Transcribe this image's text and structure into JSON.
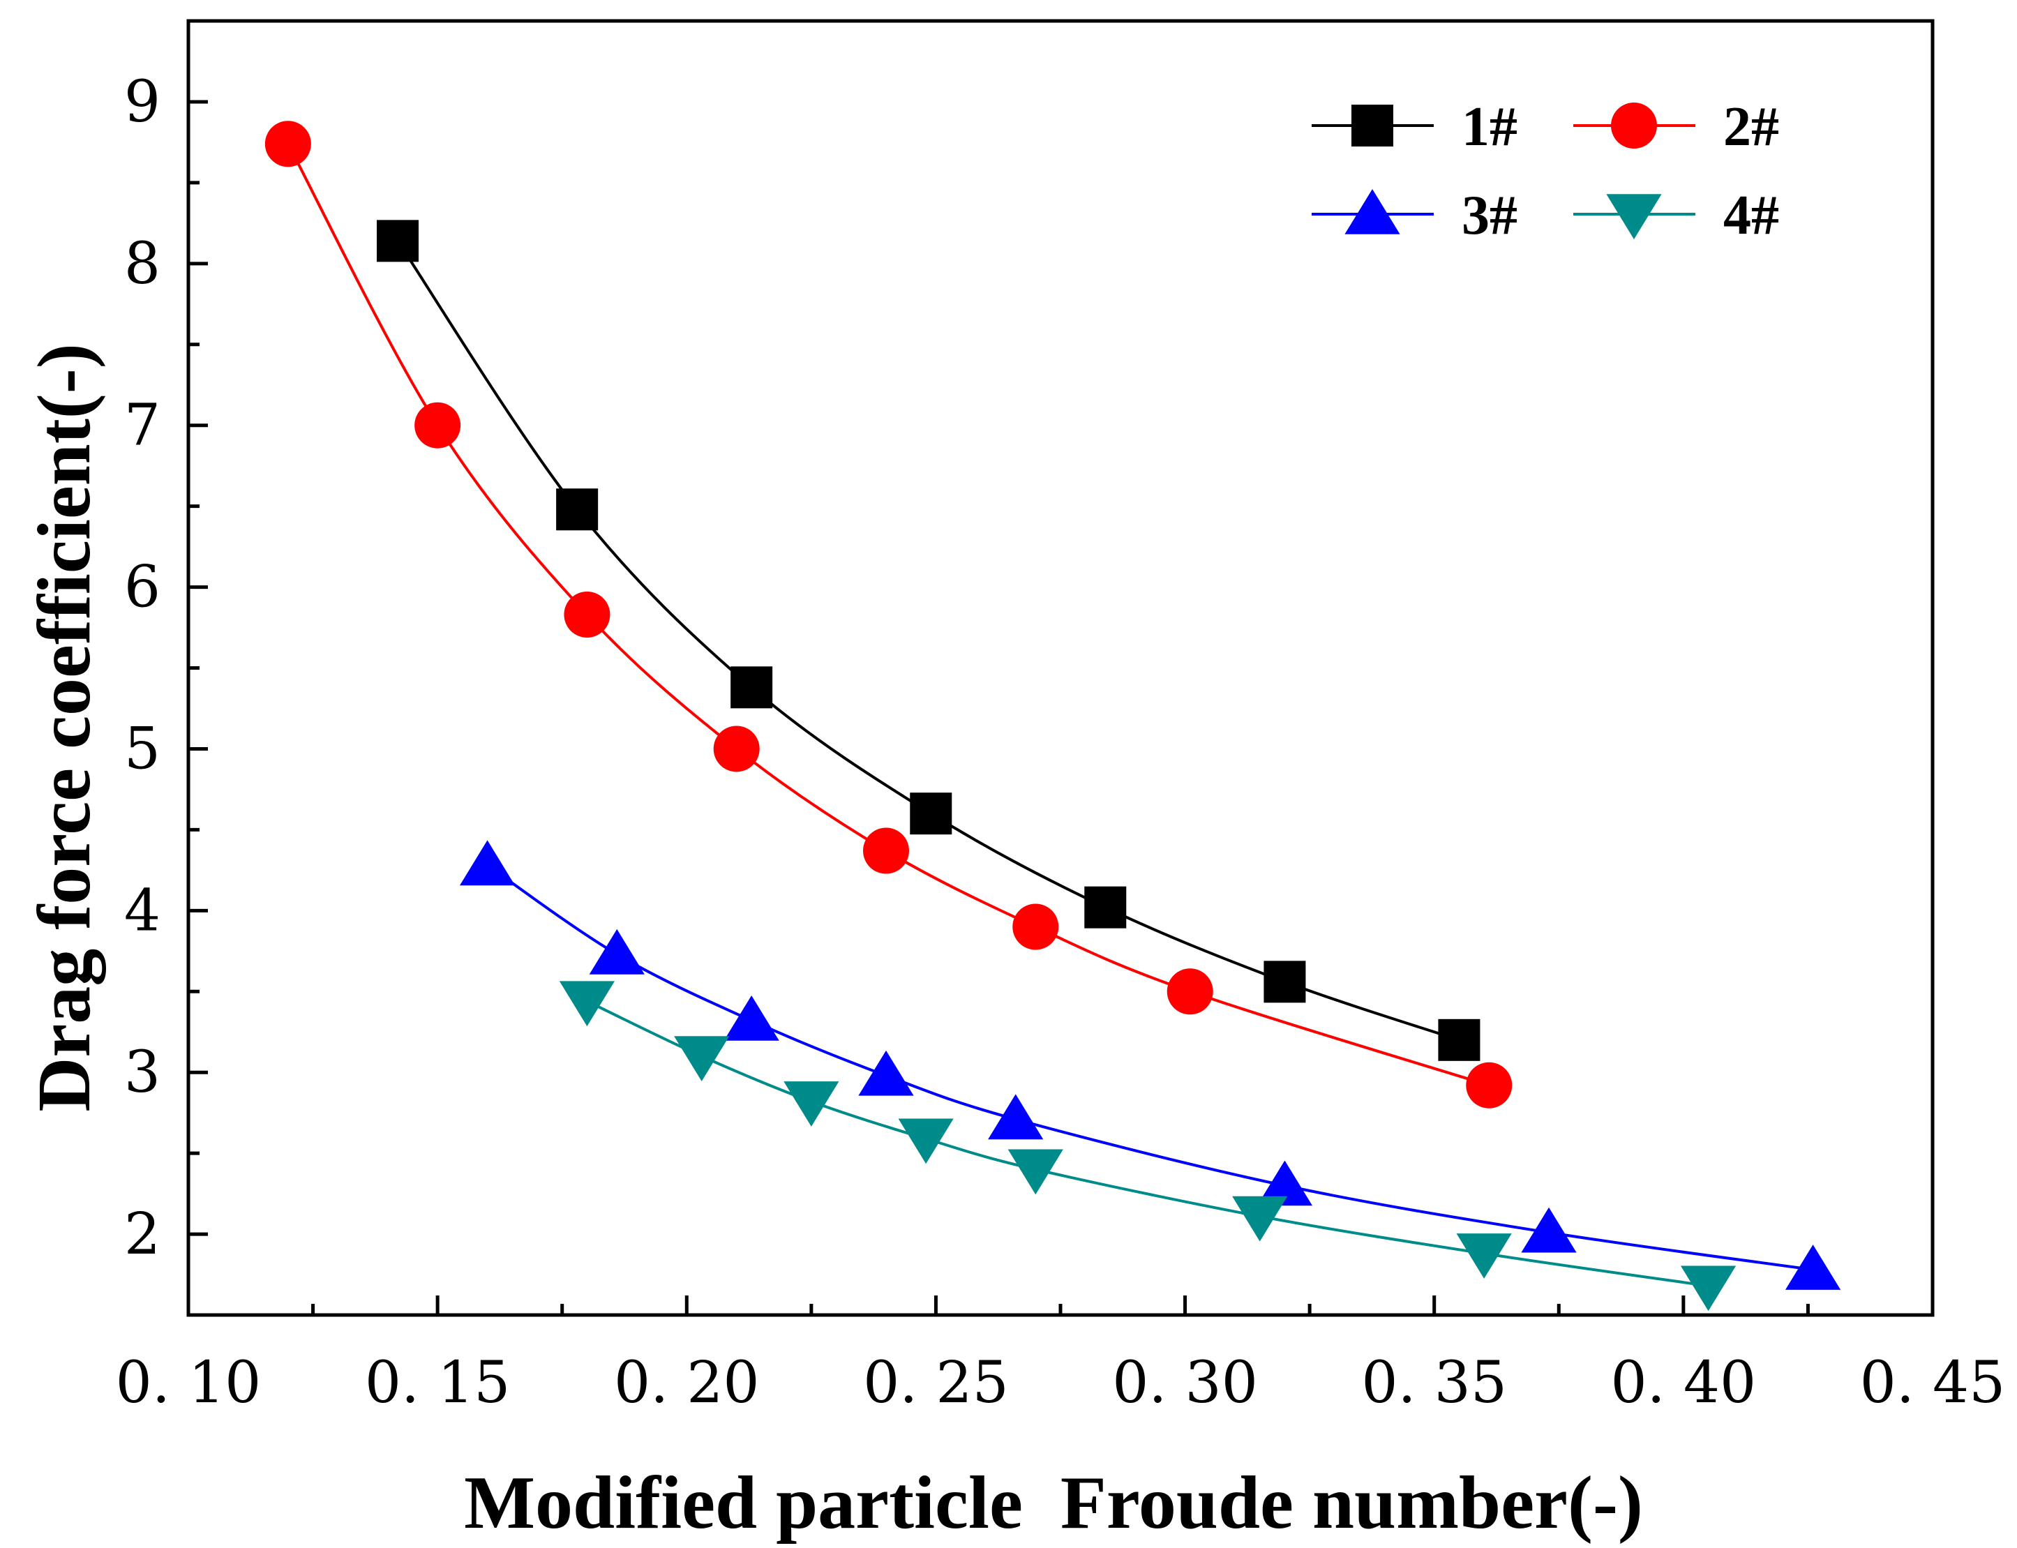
{
  "chart_data": {
    "type": "line",
    "title": "",
    "xlabel": "Modified particle  Froude number(-)",
    "ylabel": "Drag force coefficient(-)",
    "xlim": [
      0.1,
      0.45
    ],
    "ylim": [
      1.5,
      9.5
    ],
    "xticks": [
      0.1,
      0.15,
      0.2,
      0.25,
      0.3,
      0.35,
      0.4,
      0.45
    ],
    "xtick_labels": [
      "0. 10",
      "0. 15",
      "0. 20",
      "0. 25",
      "0. 30",
      "0. 35",
      "0. 40",
      "0. 45"
    ],
    "yticks": [
      2,
      3,
      4,
      5,
      6,
      7,
      8,
      9
    ],
    "ytick_labels": [
      "2",
      "3",
      "4",
      "5",
      "6",
      "7",
      "8",
      "9"
    ],
    "grid": false,
    "legend_position": "top-right",
    "series": [
      {
        "name": "1#",
        "color": "#000000",
        "marker": "square",
        "x": [
          0.142,
          0.178,
          0.213,
          0.249,
          0.284,
          0.32,
          0.355
        ],
        "y": [
          8.14,
          6.48,
          5.38,
          4.6,
          4.02,
          3.56,
          3.2
        ]
      },
      {
        "name": "2#",
        "color": "#ff0000",
        "marker": "circle",
        "x": [
          0.12,
          0.15,
          0.18,
          0.21,
          0.24,
          0.27,
          0.301,
          0.361
        ],
        "y": [
          8.74,
          7.0,
          5.83,
          5.0,
          4.37,
          3.9,
          3.5,
          2.92
        ]
      },
      {
        "name": "3#",
        "color": "#0000ff",
        "marker": "triangle-up",
        "x": [
          0.16,
          0.186,
          0.213,
          0.24,
          0.266,
          0.32,
          0.373,
          0.426
        ],
        "y": [
          4.28,
          3.73,
          3.32,
          2.98,
          2.71,
          2.3,
          2.01,
          1.78
        ]
      },
      {
        "name": "4#",
        "color": "#008b8b",
        "marker": "triangle-down",
        "x": [
          0.18,
          0.203,
          0.225,
          0.248,
          0.27,
          0.315,
          0.36,
          0.405
        ],
        "y": [
          3.44,
          3.1,
          2.82,
          2.59,
          2.4,
          2.11,
          1.88,
          1.68
        ]
      }
    ]
  }
}
